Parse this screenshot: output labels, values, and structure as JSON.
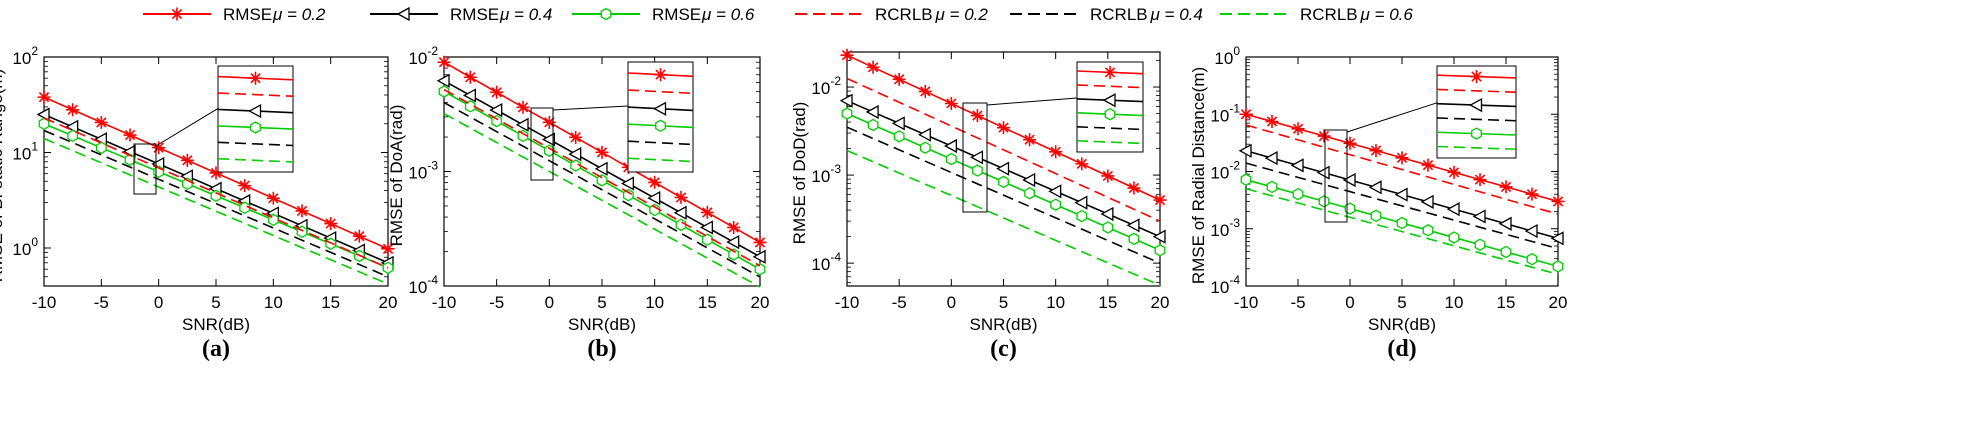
{
  "legend": {
    "entries": [
      {
        "label": "RMSE",
        "mu": "μ = 0.2",
        "color": "#ff0000",
        "dash": false,
        "marker": "star"
      },
      {
        "label": "RMSE",
        "mu": "μ = 0.4",
        "color": "#000000",
        "dash": false,
        "marker": "triangle"
      },
      {
        "label": "RMSE",
        "mu": "μ = 0.6",
        "color": "#00cc00",
        "dash": false,
        "marker": "hexagon"
      },
      {
        "label": "RCRLB",
        "mu": "μ = 0.2",
        "color": "#ff0000",
        "dash": true,
        "marker": "none"
      },
      {
        "label": "RCRLB",
        "mu": "μ = 0.4",
        "color": "#000000",
        "dash": true,
        "marker": "none"
      },
      {
        "label": "RCRLB",
        "mu": "μ = 0.6",
        "color": "#00cc00",
        "dash": true,
        "marker": "none"
      }
    ]
  },
  "chart_data": [
    {
      "type": "line",
      "caption": "(a)",
      "xlabel": "SNR(dB)",
      "ylabel": "RMSE of Bi-static Range(m)",
      "yscale": "log",
      "ylim": [
        0.4,
        100
      ],
      "xlim": [
        -10,
        20
      ],
      "xticks": [
        -10,
        -5,
        0,
        5,
        10,
        15,
        20
      ],
      "yticks": [
        1,
        10,
        100
      ],
      "ytick_labels": [
        {
          "base": "10",
          "exp": "0"
        },
        {
          "base": "10",
          "exp": "1"
        },
        {
          "base": "10",
          "exp": "2"
        }
      ],
      "x": [
        -10,
        -7.5,
        -5,
        -2.5,
        0,
        2.5,
        5,
        7.5,
        10,
        12.5,
        15,
        17.5,
        20
      ],
      "series": [
        {
          "name": "RMSE μ=0.2",
          "start": 38,
          "end": 0.98
        },
        {
          "name": "RMSE μ=0.4",
          "start": 25,
          "end": 0.7
        },
        {
          "name": "RMSE μ=0.6",
          "start": 20,
          "end": 0.62
        },
        {
          "name": "RCRLB μ=0.2",
          "start": 23,
          "end": 0.62
        },
        {
          "name": "RCRLB μ=0.4",
          "start": 17,
          "end": 0.5
        },
        {
          "name": "RCRLB μ=0.6",
          "start": 14,
          "end": 0.42
        }
      ]
    },
    {
      "type": "line",
      "caption": "(b)",
      "xlabel": "SNR(dB)",
      "ylabel": "RMSE of DoA(rad)",
      "yscale": "log",
      "ylim": [
        0.0001,
        0.01
      ],
      "xlim": [
        -10,
        20
      ],
      "xticks": [
        -10,
        -5,
        0,
        5,
        10,
        15,
        20
      ],
      "yticks": [
        0.0001,
        0.001,
        0.01
      ],
      "ytick_labels": [
        {
          "base": "10",
          "exp": "-4"
        },
        {
          "base": "10",
          "exp": "-3"
        },
        {
          "base": "10",
          "exp": "-2"
        }
      ],
      "x": [
        -10,
        -7.5,
        -5,
        -2.5,
        0,
        2.5,
        5,
        7.5,
        10,
        12.5,
        15,
        17.5,
        20
      ],
      "series": [
        {
          "name": "RMSE μ=0.2",
          "start": 0.009,
          "end": 0.00024
        },
        {
          "name": "RMSE μ=0.4",
          "start": 0.0062,
          "end": 0.00018
        },
        {
          "name": "RMSE μ=0.6",
          "start": 0.005,
          "end": 0.00014
        },
        {
          "name": "RCRLB μ=0.2",
          "start": 0.0052,
          "end": 0.00015
        },
        {
          "name": "RCRLB μ=0.4",
          "start": 0.004,
          "end": 0.00012
        },
        {
          "name": "RCRLB μ=0.6",
          "start": 0.0032,
          "end": 9.8e-05
        }
      ]
    },
    {
      "type": "line",
      "caption": "(c)",
      "xlabel": "SNR(dB)",
      "ylabel": "RMSE of DoD(rad)",
      "yscale": "log",
      "ylim": [
        5.5e-05,
        0.025
      ],
      "xlim": [
        -10,
        20
      ],
      "xticks": [
        -10,
        -5,
        0,
        5,
        10,
        15,
        20
      ],
      "yticks": [
        0.0001,
        0.001,
        0.01
      ],
      "ytick_labels": [
        {
          "base": "10",
          "exp": "-4"
        },
        {
          "base": "10",
          "exp": "-3"
        },
        {
          "base": "10",
          "exp": "-2"
        }
      ],
      "x": [
        -10,
        -7.5,
        -5,
        -2.5,
        0,
        2.5,
        5,
        7.5,
        10,
        12.5,
        15,
        17.5,
        20
      ],
      "series": [
        {
          "name": "RMSE μ=0.2",
          "start": 0.023,
          "end": 0.00052
        },
        {
          "name": "RMSE μ=0.4",
          "start": 0.007,
          "end": 0.0002
        },
        {
          "name": "RMSE μ=0.6",
          "start": 0.005,
          "end": 0.00014
        },
        {
          "name": "RCRLB μ=0.2",
          "start": 0.0125,
          "end": 0.0003
        },
        {
          "name": "RCRLB μ=0.4",
          "start": 0.0035,
          "end": 0.0001
        },
        {
          "name": "RCRLB μ=0.6",
          "start": 0.0019,
          "end": 5.6e-05
        }
      ]
    },
    {
      "type": "line",
      "caption": "(d)",
      "xlabel": "SNR(dB)",
      "ylabel": "RMSE of Radial Distance(m)",
      "yscale": "log",
      "ylim": [
        0.0001,
        1
      ],
      "xlim": [
        -10,
        20
      ],
      "xticks": [
        -10,
        -5,
        0,
        5,
        10,
        15,
        20
      ],
      "yticks": [
        0.0001,
        0.001,
        0.01,
        0.1,
        1
      ],
      "ytick_labels": [
        {
          "base": "10",
          "exp": "-4"
        },
        {
          "base": "10",
          "exp": "-3"
        },
        {
          "base": "10",
          "exp": "-2"
        },
        {
          "base": "10",
          "exp": "-1"
        },
        {
          "base": "10",
          "exp": "0"
        }
      ],
      "x": [
        -10,
        -7.5,
        -5,
        -2.5,
        0,
        2.5,
        5,
        7.5,
        10,
        12.5,
        15,
        17.5,
        20
      ],
      "series": [
        {
          "name": "RMSE μ=0.2",
          "start": 0.1,
          "end": 0.003
        },
        {
          "name": "RMSE μ=0.4",
          "start": 0.023,
          "end": 0.00068
        },
        {
          "name": "RMSE μ=0.6",
          "start": 0.0072,
          "end": 0.00022
        },
        {
          "name": "RCRLB μ=0.2",
          "start": 0.065,
          "end": 0.0018
        },
        {
          "name": "RCRLB μ=0.4",
          "start": 0.014,
          "end": 0.00045
        },
        {
          "name": "RCRLB μ=0.6",
          "start": 0.005,
          "end": 0.00016
        }
      ]
    }
  ]
}
